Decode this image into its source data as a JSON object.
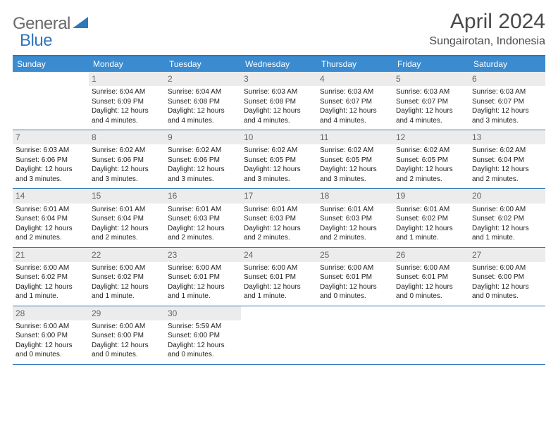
{
  "colors": {
    "brand_blue": "#2f77bb",
    "header_blue": "#3a8bd0",
    "logo_gray": "#6a6a6a",
    "daynum_bg": "#ececec",
    "daynum_text": "#666666",
    "body_text": "#222222",
    "title_text": "#4a4a4a",
    "background": "#ffffff"
  },
  "typography": {
    "title_fontsize": 30,
    "subtitle_fontsize": 16,
    "logo_fontsize": 24,
    "dayheader_fontsize": 12,
    "daynum_fontsize": 12,
    "cell_fontsize": 10
  },
  "logo": {
    "word1": "General",
    "word2": "Blue"
  },
  "title": "April 2024",
  "subtitle": "Sungairotan, Indonesia",
  "day_headers": [
    "Sunday",
    "Monday",
    "Tuesday",
    "Wednesday",
    "Thursday",
    "Friday",
    "Saturday"
  ],
  "weeks": [
    [
      null,
      {
        "n": "1",
        "sunrise": "6:04 AM",
        "sunset": "6:09 PM",
        "daylight": "12 hours and 4 minutes."
      },
      {
        "n": "2",
        "sunrise": "6:04 AM",
        "sunset": "6:08 PM",
        "daylight": "12 hours and 4 minutes."
      },
      {
        "n": "3",
        "sunrise": "6:03 AM",
        "sunset": "6:08 PM",
        "daylight": "12 hours and 4 minutes."
      },
      {
        "n": "4",
        "sunrise": "6:03 AM",
        "sunset": "6:07 PM",
        "daylight": "12 hours and 4 minutes."
      },
      {
        "n": "5",
        "sunrise": "6:03 AM",
        "sunset": "6:07 PM",
        "daylight": "12 hours and 4 minutes."
      },
      {
        "n": "6",
        "sunrise": "6:03 AM",
        "sunset": "6:07 PM",
        "daylight": "12 hours and 3 minutes."
      }
    ],
    [
      {
        "n": "7",
        "sunrise": "6:03 AM",
        "sunset": "6:06 PM",
        "daylight": "12 hours and 3 minutes."
      },
      {
        "n": "8",
        "sunrise": "6:02 AM",
        "sunset": "6:06 PM",
        "daylight": "12 hours and 3 minutes."
      },
      {
        "n": "9",
        "sunrise": "6:02 AM",
        "sunset": "6:06 PM",
        "daylight": "12 hours and 3 minutes."
      },
      {
        "n": "10",
        "sunrise": "6:02 AM",
        "sunset": "6:05 PM",
        "daylight": "12 hours and 3 minutes."
      },
      {
        "n": "11",
        "sunrise": "6:02 AM",
        "sunset": "6:05 PM",
        "daylight": "12 hours and 3 minutes."
      },
      {
        "n": "12",
        "sunrise": "6:02 AM",
        "sunset": "6:05 PM",
        "daylight": "12 hours and 2 minutes."
      },
      {
        "n": "13",
        "sunrise": "6:02 AM",
        "sunset": "6:04 PM",
        "daylight": "12 hours and 2 minutes."
      }
    ],
    [
      {
        "n": "14",
        "sunrise": "6:01 AM",
        "sunset": "6:04 PM",
        "daylight": "12 hours and 2 minutes."
      },
      {
        "n": "15",
        "sunrise": "6:01 AM",
        "sunset": "6:04 PM",
        "daylight": "12 hours and 2 minutes."
      },
      {
        "n": "16",
        "sunrise": "6:01 AM",
        "sunset": "6:03 PM",
        "daylight": "12 hours and 2 minutes."
      },
      {
        "n": "17",
        "sunrise": "6:01 AM",
        "sunset": "6:03 PM",
        "daylight": "12 hours and 2 minutes."
      },
      {
        "n": "18",
        "sunrise": "6:01 AM",
        "sunset": "6:03 PM",
        "daylight": "12 hours and 2 minutes."
      },
      {
        "n": "19",
        "sunrise": "6:01 AM",
        "sunset": "6:02 PM",
        "daylight": "12 hours and 1 minute."
      },
      {
        "n": "20",
        "sunrise": "6:00 AM",
        "sunset": "6:02 PM",
        "daylight": "12 hours and 1 minute."
      }
    ],
    [
      {
        "n": "21",
        "sunrise": "6:00 AM",
        "sunset": "6:02 PM",
        "daylight": "12 hours and 1 minute."
      },
      {
        "n": "22",
        "sunrise": "6:00 AM",
        "sunset": "6:02 PM",
        "daylight": "12 hours and 1 minute."
      },
      {
        "n": "23",
        "sunrise": "6:00 AM",
        "sunset": "6:01 PM",
        "daylight": "12 hours and 1 minute."
      },
      {
        "n": "24",
        "sunrise": "6:00 AM",
        "sunset": "6:01 PM",
        "daylight": "12 hours and 1 minute."
      },
      {
        "n": "25",
        "sunrise": "6:00 AM",
        "sunset": "6:01 PM",
        "daylight": "12 hours and 0 minutes."
      },
      {
        "n": "26",
        "sunrise": "6:00 AM",
        "sunset": "6:01 PM",
        "daylight": "12 hours and 0 minutes."
      },
      {
        "n": "27",
        "sunrise": "6:00 AM",
        "sunset": "6:00 PM",
        "daylight": "12 hours and 0 minutes."
      }
    ],
    [
      {
        "n": "28",
        "sunrise": "6:00 AM",
        "sunset": "6:00 PM",
        "daylight": "12 hours and 0 minutes."
      },
      {
        "n": "29",
        "sunrise": "6:00 AM",
        "sunset": "6:00 PM",
        "daylight": "12 hours and 0 minutes."
      },
      {
        "n": "30",
        "sunrise": "5:59 AM",
        "sunset": "6:00 PM",
        "daylight": "12 hours and 0 minutes."
      },
      null,
      null,
      null,
      null
    ]
  ],
  "labels": {
    "sunrise": "Sunrise:",
    "sunset": "Sunset:",
    "daylight": "Daylight:"
  }
}
